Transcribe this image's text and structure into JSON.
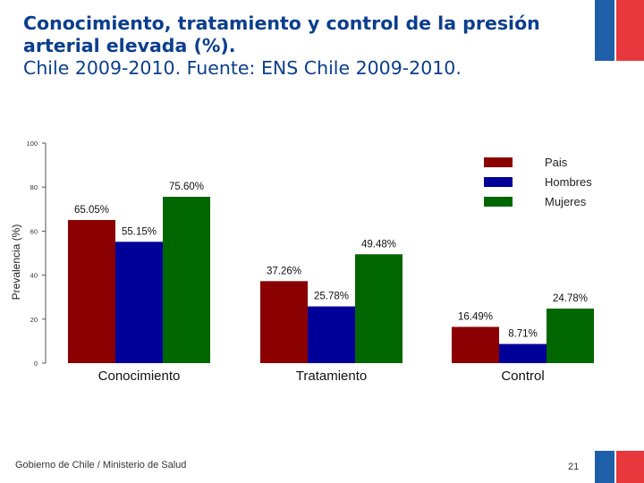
{
  "slide": {
    "title_bold": "Conocimiento, tratamiento y control de la presión arterial elevada (%).",
    "title_normal": "Chile 2009-2010. Fuente: ENS Chile 2009-2010.",
    "footer": "Gobierno de Chile / Ministerio de Salud",
    "page_number": "21"
  },
  "colors": {
    "title": "#0b3e8d",
    "flag_blue": "#1f5faa",
    "flag_red": "#e8383d"
  },
  "chart_data": {
    "type": "bar",
    "title": "",
    "xlabel": "",
    "ylabel": "Prevalencia (%)",
    "ylim": [
      0,
      100
    ],
    "yticks": [
      0,
      20,
      40,
      60,
      80,
      100
    ],
    "categories": [
      "Conocimiento",
      "Tratamiento",
      "Control"
    ],
    "series": [
      {
        "name": "Pais",
        "color": "#8b0000",
        "values": [
          65.05,
          37.26,
          16.49
        ],
        "labels": [
          "65.05%",
          "37.26%",
          "16.49%"
        ]
      },
      {
        "name": "Hombres",
        "color": "#000099",
        "values": [
          55.15,
          25.78,
          8.71
        ],
        "labels": [
          "55.15%",
          "25.78%",
          "8.71%"
        ]
      },
      {
        "name": "Mujeres",
        "color": "#006600",
        "values": [
          75.6,
          49.48,
          24.78
        ],
        "labels": [
          "75.60%",
          "49.48%",
          "24.78%"
        ]
      }
    ],
    "legend_position": "top-right",
    "grid": false
  }
}
